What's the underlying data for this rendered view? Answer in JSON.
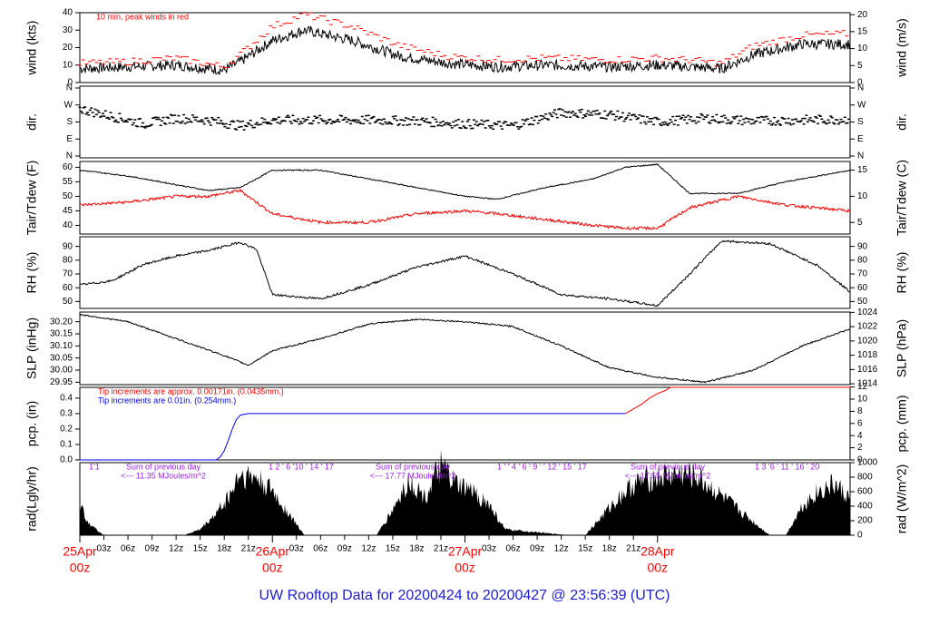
{
  "caption": "UW Rooftop Data for 20200424  to  20200427 @ 23:56:39  (UTC)",
  "chart_data": [
    {
      "type": "line",
      "id": "wind",
      "ylabel": "wind (kts)",
      "ylabel_right": "wind (m/s)",
      "ylim": [
        0,
        40
      ],
      "ticks": [
        0,
        10,
        20,
        30,
        40
      ],
      "right_ticks": [
        0,
        5,
        10,
        15,
        20
      ],
      "annotation": "10 min. peak winds in red",
      "x_hours": [
        0,
        6,
        12,
        18,
        20,
        24,
        28,
        34,
        40,
        46,
        52,
        58,
        66,
        72,
        76,
        80,
        84,
        90,
        96
      ],
      "series": [
        {
          "color": "#000000",
          "values": [
            8,
            9,
            10,
            7,
            12,
            24,
            30,
            24,
            15,
            11,
            9,
            10,
            9,
            10,
            9,
            8,
            16,
            22,
            22
          ]
        },
        {
          "color": "#ff0000",
          "values": [
            11,
            12,
            14,
            9,
            16,
            32,
            39,
            32,
            21,
            15,
            13,
            14,
            13,
            14,
            13,
            11,
            21,
            27,
            28
          ]
        }
      ]
    },
    {
      "type": "scatter",
      "id": "dir",
      "ylabel": "dir.",
      "ylabel_right": "dir.",
      "tick_labels": [
        "N",
        "W",
        "S",
        "E",
        "N"
      ],
      "x_hours": [
        0,
        4,
        8,
        12,
        16,
        20,
        24,
        30,
        36,
        42,
        48,
        54,
        60,
        66,
        72,
        78,
        84,
        90,
        96
      ],
      "values": [
        250,
        210,
        170,
        200,
        190,
        160,
        190,
        190,
        190,
        185,
        170,
        160,
        230,
        220,
        180,
        200,
        185,
        190,
        195
      ]
    },
    {
      "type": "line",
      "id": "temp",
      "ylabel": "Tair/Tdew (F)",
      "ylabel_right": "Tair/Tdew (C)",
      "ylim": [
        37,
        62
      ],
      "ticks": [
        40,
        45,
        50,
        55,
        60
      ],
      "right_ticks": [
        5,
        10,
        15
      ],
      "x_hours": [
        0,
        6,
        12,
        16,
        20,
        24,
        30,
        36,
        42,
        48,
        52,
        58,
        64,
        68,
        72,
        76,
        82,
        88,
        96
      ],
      "series": [
        {
          "color": "#000000",
          "values": [
            59,
            57,
            54,
            52,
            53,
            59,
            59,
            56,
            53,
            50,
            49,
            53,
            56,
            60,
            61,
            51,
            51,
            55,
            59
          ]
        },
        {
          "color": "#ff0000",
          "values": [
            47,
            48,
            50,
            50,
            52,
            44,
            41,
            41,
            44,
            45,
            44,
            42,
            40,
            39,
            39,
            46,
            50,
            47,
            45
          ]
        }
      ]
    },
    {
      "type": "line",
      "id": "rh",
      "ylabel": "RH (%)",
      "ylabel_right": "RH (%)",
      "ylim": [
        45,
        97
      ],
      "ticks": [
        50,
        60,
        70,
        80,
        90
      ],
      "x_hours": [
        0,
        4,
        8,
        12,
        16,
        20,
        22,
        24,
        30,
        36,
        42,
        48,
        54,
        60,
        66,
        72,
        76,
        80,
        86,
        92,
        96
      ],
      "series": [
        {
          "color": "#000000",
          "values": [
            62,
            65,
            77,
            83,
            87,
            93,
            88,
            55,
            52,
            62,
            75,
            83,
            70,
            55,
            52,
            47,
            70,
            94,
            92,
            76,
            57
          ]
        }
      ]
    },
    {
      "type": "line",
      "id": "slp",
      "ylabel": "SLP (inHg)",
      "ylabel_right": "SLP (hPa)",
      "ylim": [
        29.94,
        30.24
      ],
      "ticks": [
        "29.95",
        "30.00",
        "30.05",
        "30.10",
        "30.15",
        "30.20"
      ],
      "right_ticks": [
        1014,
        1016,
        1018,
        1020,
        1022,
        1024
      ],
      "x_hours": [
        0,
        6,
        12,
        18,
        21,
        24,
        30,
        36,
        42,
        48,
        54,
        60,
        66,
        72,
        78,
        84,
        90,
        96
      ],
      "series": [
        {
          "color": "#000000",
          "values": [
            30.23,
            30.2,
            30.13,
            30.06,
            30.02,
            30.08,
            30.13,
            30.19,
            30.21,
            30.2,
            30.18,
            30.1,
            30.01,
            29.97,
            29.95,
            30.0,
            30.1,
            30.17
          ]
        }
      ]
    },
    {
      "type": "line",
      "id": "pcp",
      "ylabel": "pcp. (in)",
      "ylabel_right": "pcp. (mm)",
      "ylim": [
        0,
        0.47
      ],
      "ticks": [
        "0.0",
        "0.1",
        "0.2",
        "0.3",
        "0.4"
      ],
      "right_ticks": [
        0,
        2,
        4,
        6,
        8,
        10,
        12
      ],
      "annotations": [
        {
          "text": "Tip increments are approx. 0.00171in. (0.0435mm.)",
          "color": "#ff0000"
        },
        {
          "text": "Tip increments are 0.01in. (0.254mm.)",
          "color": "#0000ff"
        }
      ],
      "series": [
        {
          "color": "#0000ff",
          "x_hours": [
            0,
            17,
            17.5,
            18,
            18.6,
            19,
            19.5,
            20,
            21,
            68
          ],
          "values": [
            0,
            0,
            0.02,
            0.06,
            0.14,
            0.2,
            0.26,
            0.29,
            0.3,
            0.3
          ]
        },
        {
          "color": "#ff0000",
          "x_hours": [
            68,
            69,
            70,
            71,
            72,
            73,
            73.6,
            74,
            96
          ],
          "values": [
            0.3,
            0.33,
            0.36,
            0.4,
            0.43,
            0.45,
            0.47,
            0.47,
            0.47
          ]
        }
      ]
    },
    {
      "type": "area",
      "id": "rad",
      "ylabel": "rad(Lgly/hr)",
      "ylabel_right": "rad (W/m^2)",
      "ylim": [
        0,
        1000
      ],
      "right_ticks": [
        0,
        200,
        400,
        600,
        800,
        1000
      ],
      "day_labels": [
        "1'1",
        "1  2 ' 6  '10 ' 14 '   17",
        "1 ' ' 4  '  6 '  9 ' ' 12 '  15 '  17",
        "1  3  '6  ' 11 '  16 '  20"
      ],
      "sums": [
        {
          "title": "Sum of previous day",
          "value": "<--- 11.35 MJoules/m^2"
        },
        {
          "title": "Sum of previous day",
          "value": "<--- 17.77 MJoules/m^2"
        },
        {
          "title": "Sum of previous day",
          "value": "<--- 17.55 MJoules/m^2"
        }
      ],
      "x_hours": [
        0,
        1,
        2,
        3,
        13,
        15,
        17,
        18,
        19,
        19.5,
        20,
        22,
        24,
        26,
        28,
        37,
        39,
        41,
        43,
        45,
        47,
        49,
        51,
        53,
        61,
        63,
        65,
        67,
        69,
        71,
        73,
        75,
        77,
        86,
        88,
        90,
        92,
        94,
        96
      ],
      "series": [
        {
          "color": "#000000",
          "values": [
            390,
            200,
            80,
            0,
            0,
            80,
            300,
            450,
            600,
            780,
            830,
            780,
            600,
            300,
            0,
            0,
            350,
            750,
            520,
            950,
            680,
            600,
            420,
            80,
            0,
            0,
            250,
            500,
            700,
            780,
            820,
            850,
            800,
            0,
            0,
            400,
            600,
            700,
            500
          ]
        }
      ]
    }
  ],
  "x_axis": {
    "hour_ticks": [
      "03z",
      "06z",
      "09z",
      "12z",
      "15z",
      "18z",
      "21z",
      "03z",
      "06z",
      "09z",
      "12z",
      "15z",
      "18z",
      "21z",
      "03z",
      "06z",
      "09z",
      "12z",
      "15z",
      "18z",
      "21z"
    ],
    "hour_tick_hours": [
      3,
      6,
      9,
      12,
      15,
      18,
      21,
      27,
      30,
      33,
      36,
      39,
      42,
      45,
      51,
      54,
      57,
      60,
      63,
      66,
      69
    ],
    "day_labels": [
      {
        "date": "25Apr",
        "time": "00z",
        "hour": 0
      },
      {
        "date": "26Apr",
        "time": "00z",
        "hour": 24
      },
      {
        "date": "27Apr",
        "time": "00z",
        "hour": 48
      },
      {
        "date": "28Apr",
        "time": "00z",
        "hour": 72
      }
    ]
  }
}
